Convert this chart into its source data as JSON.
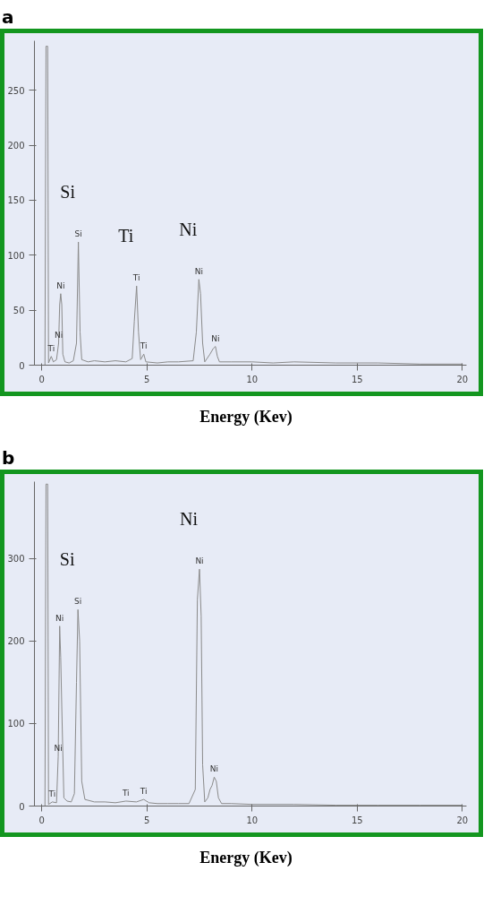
{
  "chart_data": [
    {
      "type": "line",
      "title": "a",
      "xlabel": "Energy (Kev)",
      "xlim": [
        -0.35,
        20.2
      ],
      "ylim": [
        0,
        295
      ],
      "xticks": [
        0,
        5,
        10,
        15,
        20
      ],
      "yticks": [
        0,
        50,
        100,
        150,
        200,
        250
      ],
      "grid": false,
      "x": [
        0,
        0.15,
        0.2,
        0.28,
        0.32,
        0.45,
        0.55,
        0.7,
        0.8,
        0.85,
        0.9,
        0.95,
        1.0,
        1.1,
        1.3,
        1.5,
        1.65,
        1.74,
        1.82,
        1.9,
        2.2,
        2.5,
        3.0,
        3.5,
        4.0,
        4.3,
        4.4,
        4.51,
        4.6,
        4.7,
        4.85,
        4.95,
        5.5,
        6.0,
        6.5,
        7.2,
        7.35,
        7.47,
        7.55,
        7.65,
        7.75,
        8.0,
        8.15,
        8.26,
        8.35,
        8.45,
        9,
        10,
        11,
        12,
        14,
        16,
        18,
        20
      ],
      "series": [
        {
          "color": "#8a8a8a",
          "values": [
            0,
            0,
            290,
            290,
            2,
            8,
            3,
            5,
            20,
            55,
            65,
            55,
            10,
            3,
            2,
            4,
            20,
            112,
            30,
            5,
            3,
            4,
            3,
            4,
            3,
            6,
            40,
            72,
            30,
            5,
            10,
            3,
            2,
            3,
            3,
            4,
            30,
            78,
            65,
            20,
            3,
            10,
            15,
            17,
            8,
            3,
            3,
            3,
            2,
            3,
            2,
            2,
            1,
            1
          ]
        }
      ],
      "annotations": [
        "Si",
        "Ti",
        "Ni",
        {
          "text": "Ti",
          "x": 0.45,
          "y": 8
        },
        {
          "text": "Ni",
          "x": 0.8,
          "y": 20
        },
        {
          "text": "Ni",
          "x": 0.9,
          "y": 65
        },
        {
          "text": "Si",
          "x": 1.74,
          "y": 112
        },
        {
          "text": "Ti",
          "x": 4.51,
          "y": 72
        },
        {
          "text": "Ti",
          "x": 4.85,
          "y": 10
        },
        {
          "text": "Ni",
          "x": 7.47,
          "y": 78
        },
        {
          "text": "Ni",
          "x": 8.26,
          "y": 17
        }
      ]
    },
    {
      "type": "line",
      "title": "b",
      "xlabel": "Energy (Kev)",
      "xlim": [
        -0.35,
        20.2
      ],
      "ylim": [
        0,
        393
      ],
      "xticks": [
        0,
        5,
        10,
        15,
        20
      ],
      "yticks": [
        0,
        100,
        200,
        300
      ],
      "grid": false,
      "x": [
        0,
        0.15,
        0.2,
        0.28,
        0.32,
        0.5,
        0.7,
        0.78,
        0.85,
        0.9,
        0.95,
        1.05,
        1.2,
        1.4,
        1.55,
        1.65,
        1.72,
        1.8,
        1.9,
        2.05,
        2.5,
        3.0,
        3.5,
        4.0,
        4.5,
        4.85,
        5.1,
        5.5,
        6,
        6.5,
        7.0,
        7.3,
        7.4,
        7.5,
        7.58,
        7.65,
        7.75,
        7.9,
        8.0,
        8.1,
        8.2,
        8.3,
        8.4,
        8.55,
        9,
        10,
        12,
        14,
        16,
        18,
        20
      ],
      "series": [
        {
          "color": "#8a8a8a",
          "values": [
            0,
            0,
            390,
            390,
            2,
            5,
            4,
            60,
            218,
            180,
            120,
            10,
            6,
            5,
            15,
            150,
            238,
            200,
            30,
            8,
            5,
            5,
            4,
            6,
            5,
            8,
            4,
            3,
            3,
            3,
            3,
            20,
            250,
            287,
            230,
            50,
            5,
            10,
            20,
            25,
            35,
            30,
            10,
            3,
            3,
            2,
            2,
            1,
            1,
            1,
            1
          ]
        }
      ],
      "annotations": [
        "Ni",
        "Si",
        {
          "text": "Ti",
          "x": 0.5,
          "y": 5
        },
        {
          "text": "Ni",
          "x": 0.78,
          "y": 60
        },
        {
          "text": "Ni",
          "x": 0.85,
          "y": 218
        },
        {
          "text": "Si",
          "x": 1.72,
          "y": 238
        },
        {
          "text": "Ti",
          "x": 4.0,
          "y": 6
        },
        {
          "text": "Ti",
          "x": 4.85,
          "y": 8
        },
        {
          "text": "Ni",
          "x": 7.5,
          "y": 287
        },
        {
          "text": "Ni",
          "x": 8.2,
          "y": 35
        }
      ]
    }
  ]
}
